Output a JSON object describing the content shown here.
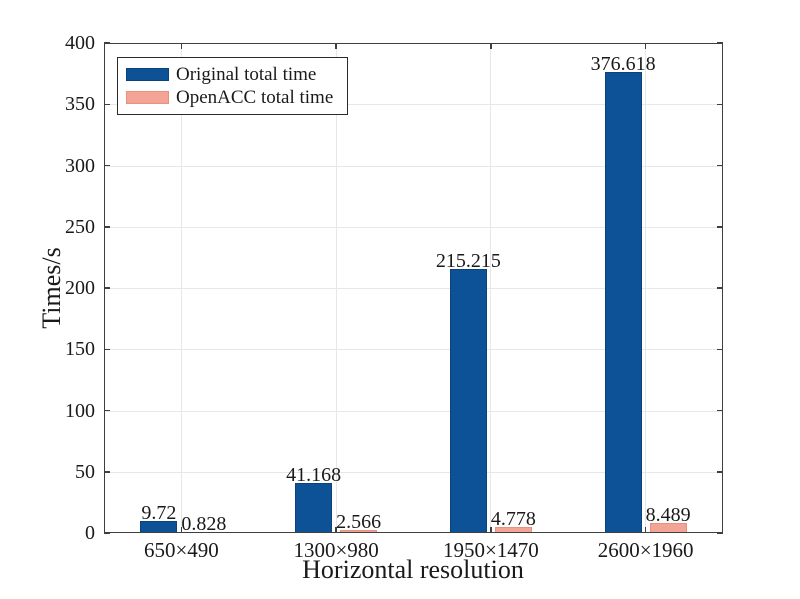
{
  "chart_data": {
    "type": "bar",
    "title": "",
    "xlabel": "Horizontal resolution",
    "ylabel": "Times/s",
    "categories": [
      "650×490",
      "1300×980",
      "1950×1470",
      "2600×1960"
    ],
    "series": [
      {
        "name": "Original total time",
        "color": "#0d5296",
        "edge_color": "#0a437c",
        "values": [
          9.72,
          41.168,
          215.215,
          376.618
        ],
        "labels": [
          "9.72",
          "41.168",
          "215.215",
          "376.618"
        ]
      },
      {
        "name": "OpenACC total time",
        "color": "#f4a494",
        "edge_color": "#e79181",
        "values": [
          0.828,
          2.566,
          4.778,
          8.489
        ],
        "labels": [
          "0.828",
          "2.566",
          "4.778",
          "8.489"
        ]
      }
    ],
    "ylim": [
      0,
      400
    ],
    "yticks": [
      0,
      50,
      100,
      150,
      200,
      250,
      300,
      350,
      400
    ],
    "grid": true,
    "legend": {
      "position": "top-left",
      "entries": [
        "Original total time",
        "OpenACC total time"
      ]
    },
    "axis_color": "#3f3f3f",
    "grid_color": "#e7e7e7",
    "text_color": "#1a1a1a"
  }
}
